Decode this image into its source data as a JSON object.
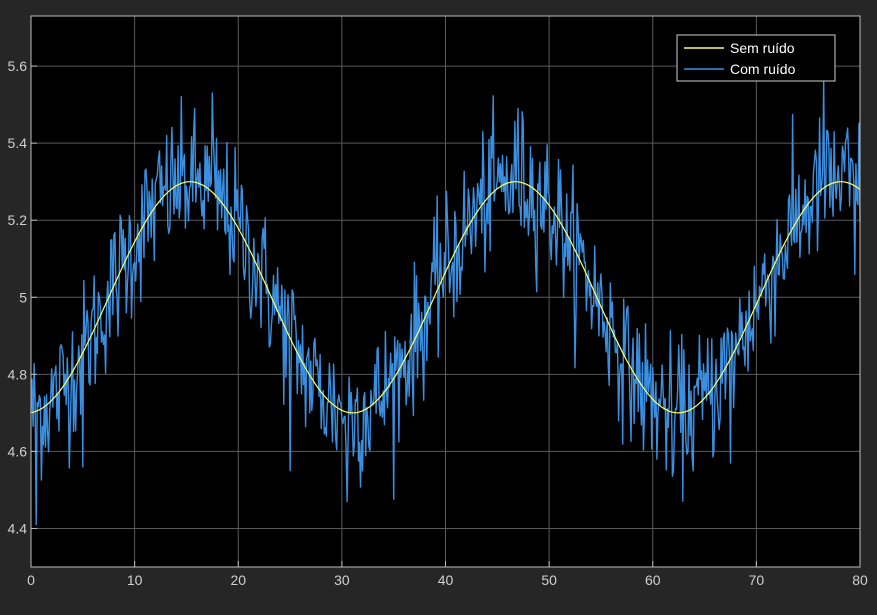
{
  "colors": {
    "figure_background": "#262626",
    "axes_background": "#000000",
    "grid": "#5a5a5a",
    "axis": "#bdbdbd",
    "tick_text": "#d0d0d0",
    "legend_background": "#000000",
    "legend_border": "#cfcfcf"
  },
  "chart_data": {
    "type": "line",
    "title": "",
    "xlabel": "",
    "ylabel": "",
    "xlim": [
      0,
      80
    ],
    "ylim": [
      4.3,
      5.73
    ],
    "xticks": [
      0,
      10,
      20,
      30,
      40,
      50,
      60,
      70,
      80
    ],
    "yticks": [
      4.4,
      4.6,
      4.8,
      5,
      5.2,
      5.4,
      5.6
    ],
    "xtick_labels": [
      "0",
      "10",
      "20",
      "30",
      "40",
      "50",
      "60",
      "70",
      "80"
    ],
    "ytick_labels": [
      "4.4",
      "4.6",
      "4.8",
      "5",
      "5.2",
      "5.4",
      "5.6"
    ],
    "grid": true,
    "legend_position": "top-right",
    "series": [
      {
        "name": "Sem ruído",
        "color": "#ffff66",
        "function": "sine",
        "offset": 5.0,
        "amplitude": 0.3,
        "period": 31.4,
        "phase_x": 7.5,
        "x_start": 0,
        "x_end": 80
      },
      {
        "name": "Com ruído",
        "color": "#3a8fe0",
        "function": "sine-with-noise",
        "offset": 5.0,
        "amplitude": 0.3,
        "period": 31.4,
        "phase_x": 7.5,
        "noise_std": 0.09,
        "x_start": 0,
        "x_end": 80,
        "x_step": 0.1,
        "sample_x": [
          0,
          0.5,
          5,
          11.5,
          17.5,
          25,
          30.5,
          39.5,
          47,
          52,
          57.5,
          62,
          67.5,
          76.5,
          79.5
        ],
        "sample_y": [
          4.7,
          4.41,
          4.56,
          5.25,
          5.53,
          4.55,
          4.47,
          5.14,
          5.49,
          5.07,
          4.97,
          4.55,
          4.57,
          5.56,
          5.06
        ]
      }
    ]
  }
}
